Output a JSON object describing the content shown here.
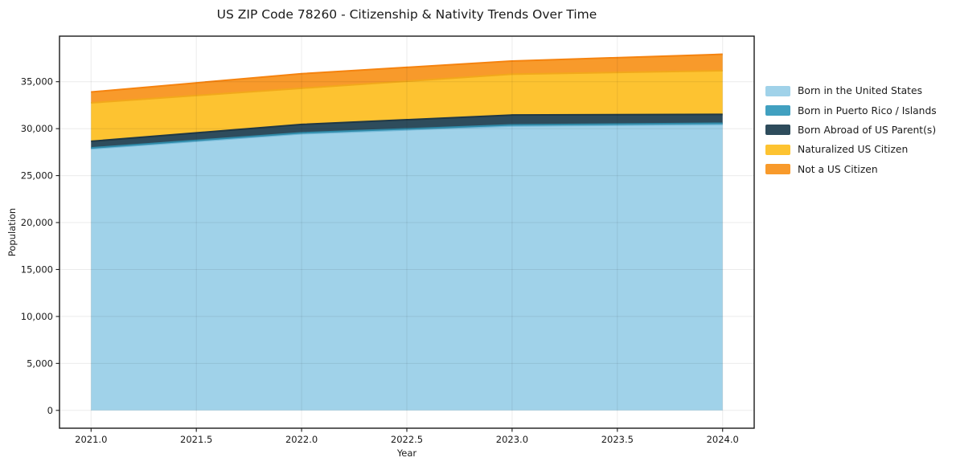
{
  "chart_data": {
    "type": "area",
    "stacked": true,
    "title": "US ZIP Code 78260 - Citizenship & Nativity Trends Over Time",
    "xlabel": "Year",
    "ylabel": "Population",
    "x": [
      2021,
      2022,
      2023,
      2024
    ],
    "series": [
      {
        "name": "Born in the United States",
        "values": [
          27850,
          29450,
          30280,
          30450
        ],
        "color": "#a0d2e9",
        "edge": "#74b9d8"
      },
      {
        "name": "Born in Puerto Rico / Islands",
        "values": [
          100,
          100,
          120,
          120
        ],
        "color": "#41a0c0",
        "edge": "#2f8aa8"
      },
      {
        "name": "Born Abroad of US Parent(s)",
        "values": [
          700,
          900,
          1050,
          950
        ],
        "color": "#2e4c5c",
        "edge": "#203845"
      },
      {
        "name": "Naturalized US Citizen",
        "values": [
          4100,
          3850,
          4350,
          4650
        ],
        "color": "#fdc331",
        "edge": "#f2a81b"
      },
      {
        "name": "Not a US Citizen",
        "values": [
          1150,
          1550,
          1400,
          1750
        ],
        "color": "#f89a2b",
        "edge": "#f5830f"
      }
    ],
    "xlim": [
      2020.85,
      2024.15
    ],
    "ylim": [
      -1900,
      39850
    ],
    "xticks": [
      2021.0,
      2021.5,
      2022.0,
      2022.5,
      2023.0,
      2023.5,
      2024.0
    ],
    "xtick_labels": [
      "2021.0",
      "2021.5",
      "2022.0",
      "2022.5",
      "2023.0",
      "2023.5",
      "2024.0"
    ],
    "yticks": [
      0,
      5000,
      10000,
      15000,
      20000,
      25000,
      30000,
      35000
    ],
    "ytick_labels": [
      "0",
      "5,000",
      "10,000",
      "15,000",
      "20,000",
      "25,000",
      "30,000",
      "35,000"
    ],
    "grid": true,
    "legend_position": "right",
    "colors": {
      "background": "#ffffff",
      "text": "#1a1a1a",
      "spine": "#1a1a1a",
      "grid": "rgba(0,0,0,0.08)"
    }
  }
}
